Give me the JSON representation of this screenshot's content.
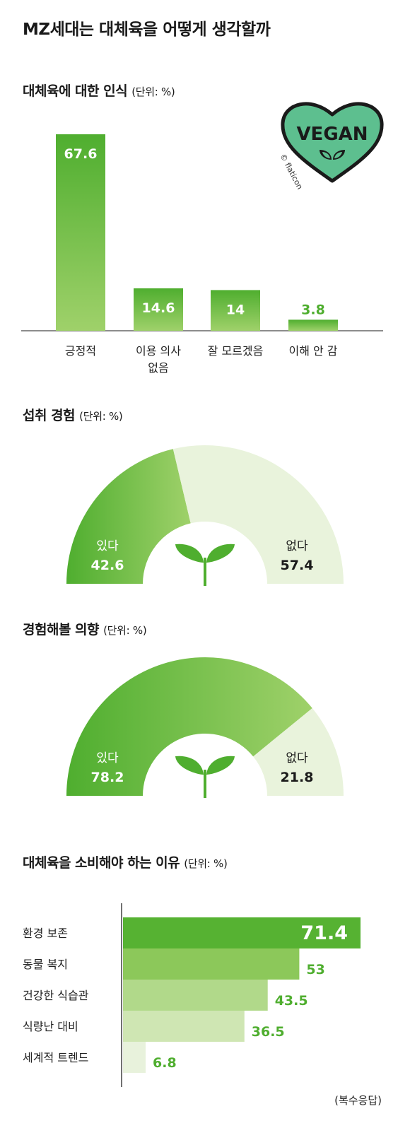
{
  "page": {
    "title": "MZ세대는 대체육을 어떻게 생각할까",
    "note": "(복수응답)"
  },
  "sections": {
    "perception": {
      "title": "대체육에 대한 인식",
      "unit": "(단위: %)"
    },
    "experience": {
      "title": "섭취 경험",
      "unit": "(단위: %)"
    },
    "intention": {
      "title": "경험해볼 의향",
      "unit": "(단위: %)"
    },
    "reasons": {
      "title": "대체육을 소비해야 하는 이유",
      "unit": "(단위: %)"
    }
  },
  "logo": {
    "text": "VEGAN",
    "credit": "© flaticon",
    "icon": "vegan-heart-icon"
  },
  "colors": {
    "green_dark": "#4fae2f",
    "green_light": "#9fd16a",
    "green_pale": "#e9f3dc",
    "logo_fill": "#5dbf8f"
  },
  "chart_data": [
    {
      "type": "bar",
      "categories": [
        "긍정적",
        "이용 의사 없음",
        "잘 모르겠음",
        "이해 안 감"
      ],
      "category_lines": [
        [
          "긍정적"
        ],
        [
          "이용 의사",
          "없음"
        ],
        [
          "잘 모르겠음"
        ],
        [
          "이해 안 감"
        ]
      ],
      "values": [
        67.6,
        14.6,
        14,
        3.8
      ],
      "value_labels": [
        "67.6",
        "14.6",
        "14",
        "3.8"
      ],
      "ylim": [
        0,
        67.6
      ]
    },
    {
      "type": "pie",
      "categories": [
        "있다",
        "없다"
      ],
      "values": [
        42.6,
        57.4
      ],
      "value_labels": [
        "42.6",
        "57.4"
      ]
    },
    {
      "type": "pie",
      "categories": [
        "있다",
        "없다"
      ],
      "values": [
        78.2,
        21.8
      ],
      "value_labels": [
        "78.2",
        "21.8"
      ]
    },
    {
      "type": "bar",
      "orientation": "horizontal",
      "categories": [
        "환경 보존",
        "동물 복지",
        "건강한 식습관",
        "식량난 대비",
        "세계적 트렌드"
      ],
      "values": [
        71.4,
        53,
        43.5,
        36.5,
        6.8
      ],
      "value_labels": [
        "71.4",
        "53",
        "43.5",
        "36.5",
        "6.8"
      ],
      "bar_colors": [
        "#56b232",
        "#8cc85a",
        "#b1d98a",
        "#cfe6b3",
        "#e8f2dc"
      ],
      "xlim": [
        0,
        71.4
      ]
    }
  ]
}
